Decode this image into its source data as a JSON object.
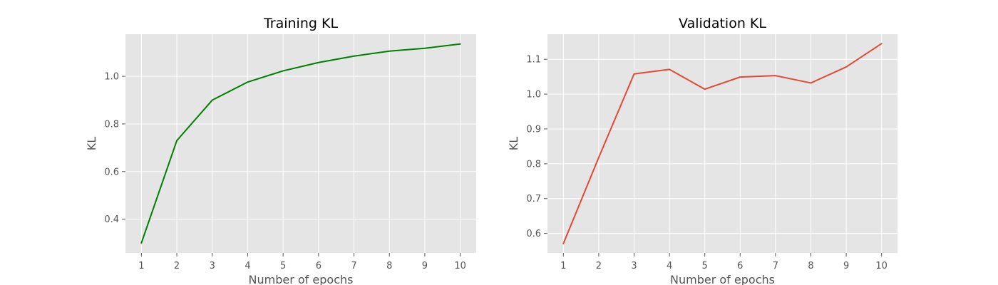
{
  "chart_data": [
    {
      "type": "line",
      "title": "Training KL",
      "xlabel": "Number of epochs",
      "ylabel": "KL",
      "x": [
        1,
        2,
        3,
        4,
        5,
        6,
        7,
        8,
        9,
        10
      ],
      "xticks": [
        1,
        2,
        3,
        4,
        5,
        6,
        7,
        8,
        9,
        10
      ],
      "yticks": [
        0.4,
        0.6,
        0.8,
        1.0
      ],
      "xlim": [
        0.55,
        10.45
      ],
      "ylim": [
        0.258,
        1.177
      ],
      "grid": true,
      "series": [
        {
          "color": "#008000",
          "values": [
            0.3,
            0.73,
            0.9,
            0.976,
            1.023,
            1.058,
            1.085,
            1.106,
            1.118,
            1.136
          ]
        }
      ]
    },
    {
      "type": "line",
      "title": "Validation KL",
      "xlabel": "Number of epochs",
      "ylabel": "KL",
      "x": [
        1,
        2,
        3,
        4,
        5,
        6,
        7,
        8,
        9,
        10
      ],
      "xticks": [
        1,
        2,
        3,
        4,
        5,
        6,
        7,
        8,
        9,
        10
      ],
      "yticks": [
        0.6,
        0.7,
        0.8,
        0.9,
        1.0,
        1.1
      ],
      "xlim": [
        0.55,
        10.45
      ],
      "ylim": [
        0.544,
        1.172
      ],
      "grid": true,
      "series": [
        {
          "color": "#e24a33",
          "values": [
            0.571,
            0.818,
            1.058,
            1.071,
            1.014,
            1.049,
            1.053,
            1.032,
            1.078,
            1.145
          ]
        }
      ]
    }
  ]
}
